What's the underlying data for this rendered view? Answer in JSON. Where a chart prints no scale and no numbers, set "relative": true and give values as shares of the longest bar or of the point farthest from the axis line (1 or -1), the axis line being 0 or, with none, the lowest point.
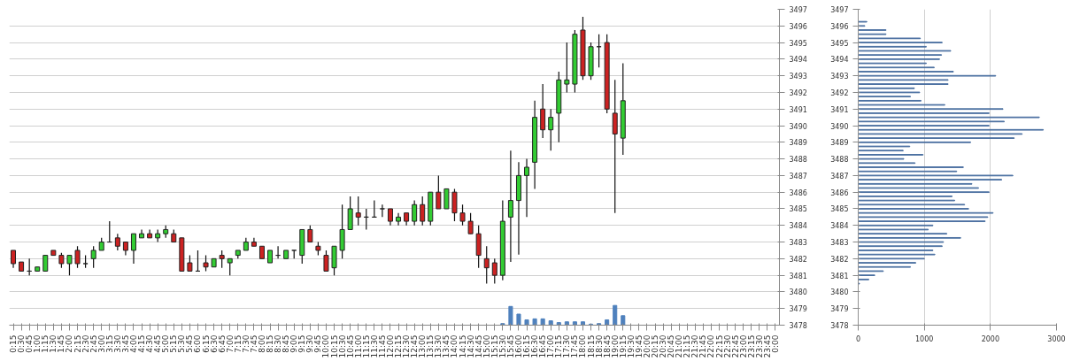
{
  "chart_data": [
    {
      "type": "candlestick",
      "categories": [
        "0:15",
        "0:30",
        "0:45",
        "1:00",
        "1:15",
        "1:30",
        "1:45",
        "2:00",
        "2:15",
        "2:30",
        "2:45",
        "3:00",
        "3:15",
        "3:30",
        "3:45",
        "4:00",
        "4:15",
        "4:30",
        "4:45",
        "5:00",
        "5:15",
        "5:30",
        "5:45",
        "6:00",
        "6:15",
        "6:30",
        "6:45",
        "7:00",
        "7:15",
        "7:30",
        "7:45",
        "8:00",
        "8:15",
        "8:30",
        "8:45",
        "9:00",
        "9:15",
        "9:30",
        "9:45",
        "10:00",
        "10:15",
        "10:30",
        "10:45",
        "11:00",
        "11:15",
        "11:30",
        "11:45",
        "12:00",
        "12:15",
        "12:30",
        "12:45",
        "13:00",
        "13:15",
        "13:30",
        "13:45",
        "14:00",
        "14:15",
        "14:30",
        "14:45",
        "15:00",
        "15:15",
        "15:30",
        "15:45",
        "16:00",
        "16:15",
        "16:30",
        "16:45",
        "17:00",
        "17:15",
        "17:30",
        "17:45",
        "18:00",
        "18:15",
        "18:30",
        "18:45",
        "19:00",
        "19:15",
        "19:30",
        "19:45",
        "20:00",
        "20:15",
        "20:30",
        "20:45",
        "21:00",
        "21:15",
        "21:30",
        "21:45",
        "22:00",
        "22:15",
        "22:30",
        "22:45",
        "23:00",
        "23:15",
        "23:30",
        "23:45",
        "0:00"
      ],
      "ohlc": [
        [
          3482.5,
          3482.5,
          3481.45,
          3481.7
        ],
        [
          3481.8,
          3481.8,
          3481.25,
          3481.25
        ],
        [
          3481.25,
          3482.0,
          3481.0,
          3481.25
        ],
        [
          3481.25,
          3481.5,
          3481.25,
          3481.5
        ],
        [
          3481.25,
          3482.2,
          3481.25,
          3482.2
        ],
        [
          3482.5,
          3482.5,
          3482.2,
          3482.2
        ],
        [
          3482.2,
          3482.35,
          3481.45,
          3481.7
        ],
        [
          3481.7,
          3482.2,
          3481.0,
          3482.2
        ],
        [
          3482.5,
          3482.75,
          3481.45,
          3481.7
        ],
        [
          3481.7,
          3482.2,
          3481.45,
          3481.7
        ],
        [
          3482.0,
          3482.75,
          3481.45,
          3482.5
        ],
        [
          3482.5,
          3483.25,
          3482.5,
          3483.0
        ],
        [
          3483.0,
          3484.25,
          3483.0,
          3483.0
        ],
        [
          3483.25,
          3483.5,
          3482.5,
          3482.75
        ],
        [
          3483.0,
          3483.0,
          3482.2,
          3482.5
        ],
        [
          3482.5,
          3483.5,
          3481.7,
          3483.5
        ],
        [
          3483.25,
          3483.75,
          3483.25,
          3483.5
        ],
        [
          3483.5,
          3483.75,
          3483.25,
          3483.25
        ],
        [
          3483.25,
          3483.75,
          3483.0,
          3483.5
        ],
        [
          3483.5,
          3484.0,
          3483.25,
          3483.75
        ],
        [
          3483.5,
          3483.75,
          3483.0,
          3483.0
        ],
        [
          3483.25,
          3483.25,
          3481.25,
          3481.25
        ],
        [
          3481.75,
          3482.2,
          3481.25,
          3481.25
        ],
        [
          3481.25,
          3482.5,
          3481.25,
          3481.25
        ],
        [
          3481.75,
          3482.2,
          3481.25,
          3481.5
        ],
        [
          3481.5,
          3482.0,
          3481.5,
          3482.0
        ],
        [
          3482.2,
          3482.5,
          3481.45,
          3482.0
        ],
        [
          3481.75,
          3482.0,
          3481.0,
          3482.0
        ],
        [
          3482.2,
          3482.5,
          3482.0,
          3482.5
        ],
        [
          3482.5,
          3483.25,
          3482.5,
          3483.0
        ],
        [
          3483.0,
          3483.25,
          3482.75,
          3482.75
        ],
        [
          3482.75,
          3482.75,
          3482.0,
          3482.0
        ],
        [
          3481.75,
          3482.5,
          3481.75,
          3482.5
        ],
        [
          3482.2,
          3482.75,
          3482.0,
          3482.2
        ],
        [
          3482.0,
          3482.5,
          3482.0,
          3482.5
        ],
        [
          3482.5,
          3482.5,
          3482.0,
          3482.5
        ],
        [
          3482.2,
          3483.75,
          3481.7,
          3483.75
        ],
        [
          3483.75,
          3484.0,
          3483.0,
          3483.0
        ],
        [
          3482.75,
          3483.0,
          3482.2,
          3482.5
        ],
        [
          3482.2,
          3482.5,
          3481.25,
          3481.25
        ],
        [
          3481.45,
          3482.75,
          3481.0,
          3482.75
        ],
        [
          3482.5,
          3485.25,
          3482.0,
          3483.75
        ],
        [
          3483.75,
          3485.75,
          3483.75,
          3485.0
        ],
        [
          3484.75,
          3485.75,
          3484.0,
          3484.5
        ],
        [
          3484.5,
          3485.0,
          3483.75,
          3484.5
        ],
        [
          3484.5,
          3485.5,
          3484.5,
          3484.5
        ],
        [
          3485.0,
          3485.25,
          3484.5,
          3485.0
        ],
        [
          3485.0,
          3485.0,
          3484.0,
          3484.25
        ],
        [
          3484.25,
          3484.75,
          3484.0,
          3484.5
        ],
        [
          3484.75,
          3484.75,
          3484.0,
          3484.25
        ],
        [
          3484.25,
          3485.5,
          3484.0,
          3485.25
        ],
        [
          3485.25,
          3485.75,
          3484.0,
          3484.25
        ],
        [
          3484.25,
          3486.0,
          3484.0,
          3486.0
        ],
        [
          3486.0,
          3487.0,
          3485.0,
          3485.0
        ],
        [
          3485.0,
          3486.2,
          3485.0,
          3486.2
        ],
        [
          3486.0,
          3486.2,
          3484.25,
          3484.75
        ],
        [
          3484.75,
          3485.25,
          3484.0,
          3484.25
        ],
        [
          3484.25,
          3484.75,
          3483.5,
          3483.5
        ],
        [
          3483.5,
          3484.0,
          3481.45,
          3482.2
        ],
        [
          3482.0,
          3482.75,
          3480.5,
          3481.45
        ],
        [
          3481.75,
          3482.0,
          3480.5,
          3481.0
        ],
        [
          3481.0,
          3485.5,
          3480.7,
          3484.25
        ],
        [
          3484.5,
          3488.5,
          3481.8,
          3485.5
        ],
        [
          3485.5,
          3487.8,
          3482.25,
          3487.0
        ],
        [
          3487.0,
          3488.0,
          3484.5,
          3487.5
        ],
        [
          3487.8,
          3491.5,
          3486.2,
          3490.5
        ],
        [
          3491.0,
          3492.5,
          3489.25,
          3489.75
        ],
        [
          3489.75,
          3491.0,
          3488.5,
          3490.5
        ],
        [
          3490.75,
          3493.25,
          3489.0,
          3492.75
        ],
        [
          3492.5,
          3495.0,
          3492.0,
          3492.75
        ],
        [
          3492.5,
          3495.75,
          3492.0,
          3495.5
        ],
        [
          3495.75,
          3496.55,
          3492.75,
          3493.0
        ],
        [
          3493.0,
          3495.0,
          3492.75,
          3494.75
        ],
        [
          3494.75,
          3495.5,
          3493.5,
          3494.75
        ],
        [
          3495.0,
          3495.5,
          3490.75,
          3491.0
        ],
        [
          3490.75,
          3492.75,
          3484.75,
          3489.5
        ],
        [
          3489.25,
          3493.75,
          3488.25,
          3491.5
        ],
        null,
        null,
        null,
        null,
        null,
        null,
        null,
        null,
        null,
        null,
        null,
        null,
        null,
        null,
        null,
        null,
        null,
        null,
        null
      ],
      "colors": [
        "#cc2222",
        "#cc2222",
        "#222222",
        "#33cc33",
        "#33cc33",
        "#cc2222",
        "#cc2222",
        "#33cc33",
        "#cc2222",
        "#222222",
        "#33cc33",
        "#33cc33",
        "#222222",
        "#cc2222",
        "#cc2222",
        "#33cc33",
        "#33cc33",
        "#cc2222",
        "#33cc33",
        "#33cc33",
        "#cc2222",
        "#cc2222",
        "#cc2222",
        "#222222",
        "#cc2222",
        "#33cc33",
        "#cc2222",
        "#33cc33",
        "#33cc33",
        "#33cc33",
        "#cc2222",
        "#cc2222",
        "#33cc33",
        "#222222",
        "#33cc33",
        "#222222",
        "#33cc33",
        "#cc2222",
        "#cc2222",
        "#cc2222",
        "#33cc33",
        "#33cc33",
        "#33cc33",
        "#cc2222",
        "#222222",
        "#222222",
        "#222222",
        "#cc2222",
        "#33cc33",
        "#cc2222",
        "#33cc33",
        "#cc2222",
        "#33cc33",
        "#cc2222",
        "#33cc33",
        "#cc2222",
        "#cc2222",
        "#cc2222",
        "#cc2222",
        "#cc2222",
        "#cc2222",
        "#33cc33",
        "#33cc33",
        "#33cc33",
        "#33cc33",
        "#33cc33",
        "#cc2222",
        "#33cc33",
        "#33cc33",
        "#33cc33",
        "#33cc33",
        "#cc2222",
        "#33cc33",
        "#222222",
        "#cc2222",
        "#cc2222",
        "#33cc33",
        null,
        null,
        null,
        null,
        null,
        null,
        null,
        null,
        null,
        null,
        null,
        null,
        null,
        null,
        null,
        null,
        null,
        null,
        null
      ],
      "ylim": [
        3478,
        3497
      ],
      "yticks": [
        3478,
        3479,
        3480,
        3481,
        3482,
        3483,
        3484,
        3485,
        3486,
        3487,
        3488,
        3489,
        3490,
        3491,
        3492,
        3493,
        3494,
        3495,
        3496,
        3497
      ],
      "grid": "y"
    },
    {
      "type": "bar",
      "relative": true,
      "tick_labels": false,
      "color": "#4f81bd",
      "categories": [
        null,
        null,
        null,
        null,
        null,
        null,
        null,
        null,
        null,
        null,
        null,
        null,
        null,
        null,
        null,
        null,
        null,
        null,
        null,
        null,
        null,
        null,
        null,
        null,
        null,
        null,
        null,
        null,
        null,
        null,
        null,
        null,
        null,
        null,
        null,
        null,
        null,
        null,
        null,
        null,
        null,
        null,
        null,
        null,
        null,
        null,
        null,
        null,
        null,
        null,
        null,
        null,
        null,
        null,
        null,
        null,
        null,
        null,
        null,
        null,
        null,
        null,
        null,
        null,
        null,
        null,
        null,
        null,
        null,
        null,
        null,
        null,
        null,
        null,
        null,
        null,
        null,
        null,
        null,
        null,
        null,
        null,
        null,
        null,
        null,
        null,
        null,
        null,
        null,
        null,
        null,
        null,
        null,
        null,
        null,
        null
      ],
      "values": [
        null,
        null,
        null,
        null,
        null,
        null,
        null,
        null,
        null,
        null,
        null,
        null,
        null,
        null,
        null,
        null,
        null,
        null,
        null,
        null,
        null,
        null,
        null,
        null,
        null,
        null,
        null,
        null,
        null,
        null,
        null,
        null,
        null,
        null,
        null,
        null,
        null,
        null,
        null,
        null,
        null,
        null,
        null,
        null,
        null,
        null,
        null,
        null,
        null,
        null,
        null,
        null,
        null,
        null,
        null,
        null,
        null,
        null,
        null,
        null,
        null,
        0.08,
        0.95,
        0.56,
        0.27,
        0.32,
        0.32,
        0.22,
        0.13,
        0.17,
        0.17,
        0.17,
        0.05,
        0.08,
        0.27,
        1,
        0.48,
        null,
        null,
        null,
        null,
        null,
        null,
        null,
        null,
        null,
        null,
        null,
        null,
        null,
        null,
        null,
        null,
        null,
        null,
        null
      ]
    },
    {
      "type": "bar",
      "orientation": "horizontal",
      "color": "#4a6fa0",
      "x": [
        3496.25,
        3496.0,
        3495.75,
        3495.5,
        3495.25,
        3495.0,
        3494.75,
        3494.5,
        3494.25,
        3494.0,
        3493.75,
        3493.5,
        3493.25,
        3493.0,
        3492.75,
        3492.5,
        3492.25,
        3492.0,
        3491.75,
        3491.5,
        3491.25,
        3491.0,
        3490.75,
        3490.5,
        3490.25,
        3490.0,
        3489.75,
        3489.5,
        3489.25,
        3489.0,
        3488.75,
        3488.5,
        3488.25,
        3488.0,
        3487.75,
        3487.5,
        3487.25,
        3487.0,
        3486.75,
        3486.5,
        3486.25,
        3486.0,
        3485.75,
        3485.5,
        3485.25,
        3485.0,
        3484.75,
        3484.5,
        3484.25,
        3484.0,
        3483.75,
        3483.5,
        3483.25,
        3483.0,
        3482.75,
        3482.5,
        3482.25,
        3482.0,
        3481.75,
        3481.5,
        3481.25,
        3481.0,
        3480.75,
        3480.5
      ],
      "values": [
        130,
        100,
        420,
        420,
        940,
        1270,
        1030,
        1400,
        1260,
        1230,
        1030,
        1150,
        1440,
        2080,
        1360,
        1360,
        850,
        930,
        790,
        950,
        1310,
        2190,
        1980,
        2740,
        2210,
        1980,
        2800,
        2480,
        2360,
        1700,
        780,
        680,
        980,
        690,
        860,
        1590,
        1490,
        2340,
        2170,
        1720,
        1820,
        1980,
        1420,
        1460,
        1610,
        1670,
        2040,
        1960,
        1920,
        1130,
        1060,
        1340,
        1550,
        1290,
        1270,
        1130,
        1160,
        1000,
        870,
        790,
        380,
        250,
        160,
        20
      ],
      "xlim": [
        0,
        3000
      ],
      "xticks": [
        0,
        1000,
        2000,
        3000
      ],
      "ylim": [
        3478,
        3497
      ],
      "yticks": [
        3478,
        3479,
        3480,
        3481,
        3482,
        3483,
        3484,
        3485,
        3486,
        3487,
        3488,
        3489,
        3490,
        3491,
        3492,
        3493,
        3494,
        3495,
        3496,
        3497
      ],
      "grid": "x"
    }
  ]
}
